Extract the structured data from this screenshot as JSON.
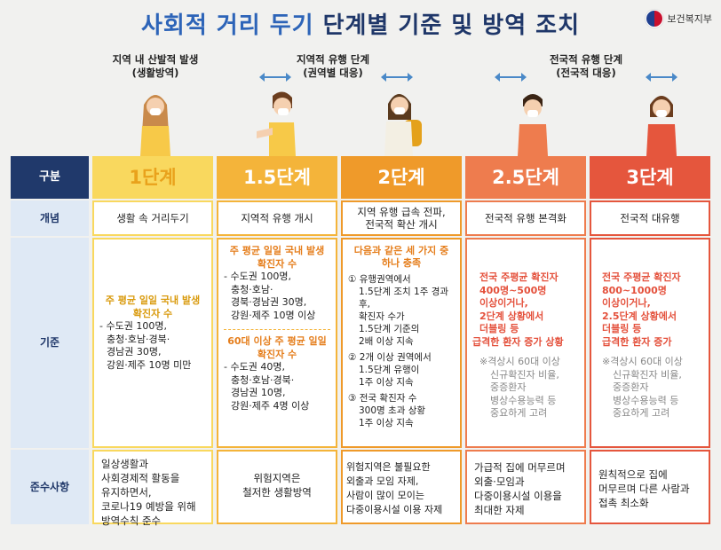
{
  "title": {
    "part1": "사회적 거리 두기",
    "part2": "단계별 기준 및 방역 조치"
  },
  "logo": "보건복지부",
  "phases": [
    {
      "line1": "지역 내 산발적 발생",
      "line2": "(생활방역)"
    },
    {
      "line1": "지역적 유행 단계",
      "line2": "(권역별 대응)"
    },
    {
      "line1": "전국적 유행 단계",
      "line2": "(전국적 대응)"
    }
  ],
  "colors": {
    "navy": "#20396b",
    "lightblue": "#dfe9f5",
    "step1": "#f9d85e",
    "step15": "#f4b43a",
    "step2": "#ef9a2a",
    "step25": "#ee7c4e",
    "step3": "#e5563d"
  },
  "rows": {
    "header": "구분",
    "concept": "개념",
    "criteria": "기준",
    "compliance": "준수사항"
  },
  "steps": {
    "s1": {
      "label": "1단계",
      "concept": "생활 속 거리두기",
      "crit_head": "주 평균 일일 국내 발생 확진자 수",
      "crit_lines": [
        "- 수도권 100명,",
        "충청·호남·경북·",
        "경남권 30명,",
        "강원·제주 10명 미만"
      ],
      "comp": [
        "일상생활과",
        "사회경제적 활동을",
        "유지하면서,",
        "코로나19 예방을 위해",
        "방역수칙 준수"
      ]
    },
    "s15": {
      "label": "1.5단계",
      "concept": "지역적 유행 개시",
      "crit_head1": "주 평균 일일 국내 발생 확진자 수",
      "crit_lines1": [
        "- 수도권 100명,",
        "충청·호남·",
        "경북·경남권 30명,",
        "강원·제주 10명 이상"
      ],
      "crit_head2": "60대 이상 주 평균 일일 확진자 수",
      "crit_lines2": [
        "- 수도권 40명,",
        "충청·호남·경북·",
        "경남권 10명,",
        "강원·제주 4명 이상"
      ],
      "comp": [
        "위험지역은",
        "철저한 생활방역"
      ]
    },
    "s2": {
      "label": "2단계",
      "concept": [
        "지역 유행 급속 전파,",
        "전국적 확산 개시"
      ],
      "crit_head": "다음과 같은 세 가지 중 하나 충족",
      "crit_lines": [
        "① 유행권역에서",
        "1.5단계 조치 1주 경과 후,",
        "확진자 수가",
        "1.5단계 기준의",
        "2배 이상 지속",
        "② 2개 이상 권역에서",
        "1.5단계 유행이",
        "1주 이상 지속",
        "③ 전국 확진자 수",
        "300명 초과 상황",
        "1주 이상 지속"
      ],
      "comp": [
        "위험지역은 불필요한",
        "외출과 모임 자제,",
        "사람이 많이 모이는",
        "다중이용시설 이용 자제"
      ]
    },
    "s25": {
      "label": "2.5단계",
      "concept": "전국적 유행 본격화",
      "crit_lines": [
        "전국 주평균 확진자",
        "400명~500명",
        "이상이거나,",
        "2단계 상황에서",
        "더블링 등",
        "급격한 환자 증가 상황"
      ],
      "note": [
        "※격상시 60대 이상",
        "신규확진자 비율,",
        "중증환자",
        "병상수용능력 등",
        "중요하게 고려"
      ],
      "comp": [
        "가급적 집에 머무르며",
        "외출·모임과",
        "다중이용시설 이용을",
        "최대한 자제"
      ]
    },
    "s3": {
      "label": "3단계",
      "concept": "전국적 대유행",
      "crit_lines": [
        "전국 주평균 확진자",
        "800~1000명",
        "이상이거나,",
        "2.5단계 상황에서",
        "더블링 등",
        "급격한 환자 증가"
      ],
      "note": [
        "※격상시 60대 이상",
        "신규확진자 비율,",
        "중증환자",
        "병상수용능력 등",
        "중요하게 고려"
      ],
      "comp": [
        "원칙적으로 집에",
        "머무르며 다른 사람과",
        "접촉 최소화"
      ]
    }
  }
}
